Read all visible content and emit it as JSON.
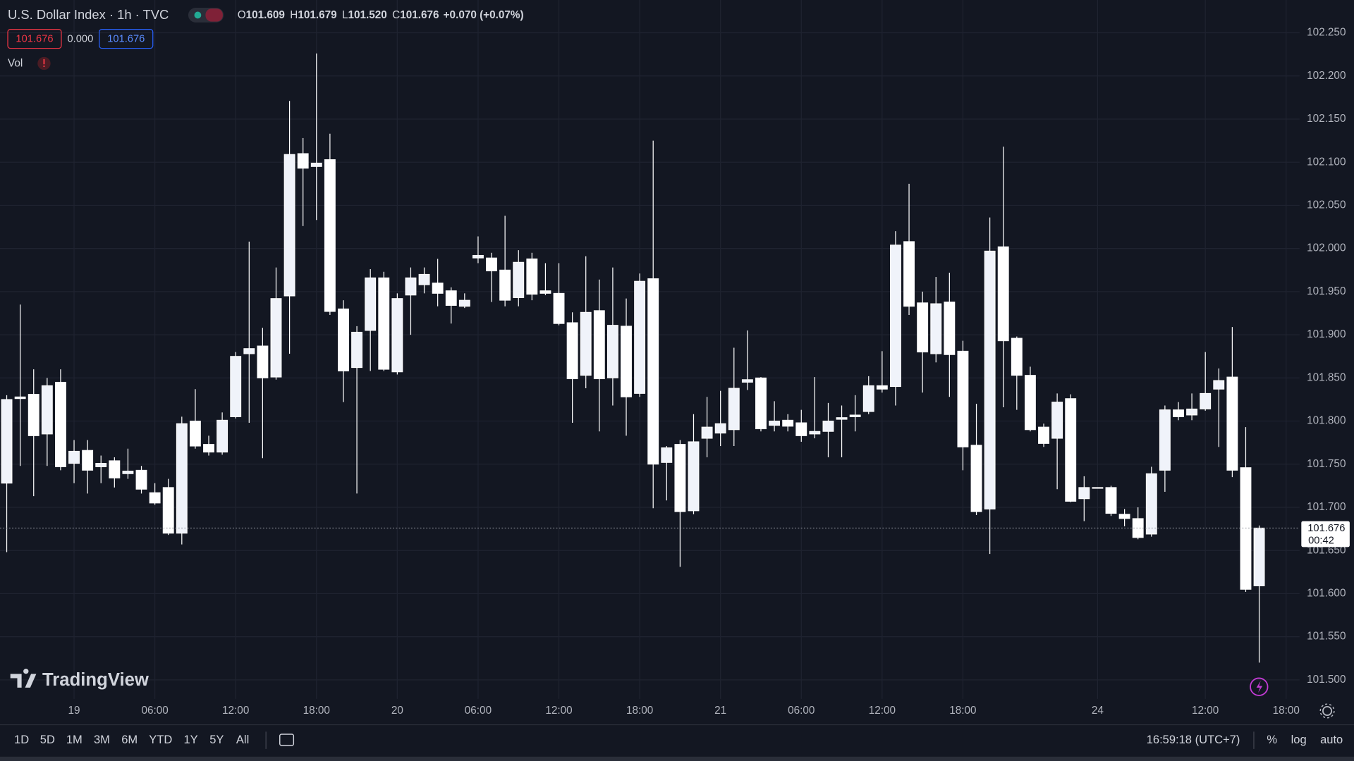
{
  "header": {
    "symbol": "U.S. Dollar Index · 1h · TVC",
    "ohlc": [
      {
        "key": "O",
        "value": "101.609"
      },
      {
        "key": "H",
        "value": "101.679"
      },
      {
        "key": "L",
        "value": "101.520"
      },
      {
        "key": "C",
        "value": "101.676"
      }
    ],
    "change": "+0.070 (+0.07%)",
    "indicators": [
      "101.676",
      "0.000",
      "101.676"
    ],
    "volume": "Vol"
  },
  "logo": "TradingView",
  "toolbar": {
    "ranges": [
      "1D",
      "5D",
      "1M",
      "3M",
      "6M",
      "YTD",
      "1Y",
      "5Y",
      "All"
    ],
    "clock": "16:59:18 (UTC+7)",
    "options": [
      "%",
      "log",
      "auto"
    ]
  },
  "chart_data": {
    "type": "candlestick",
    "color": "#ffffff",
    "open": [
      101.728,
      101.826,
      101.831,
      101.785,
      101.845,
      101.751,
      101.766,
      101.747,
      101.754,
      101.739,
      101.743,
      101.717,
      101.723,
      101.67,
      101.8,
      101.773,
      101.764,
      101.805,
      101.878,
      101.887,
      101.851,
      101.945,
      102.11,
      102.095,
      102.103,
      101.93,
      101.862,
      101.905,
      101.966,
      101.857,
      101.946,
      101.958,
      101.96,
      101.951,
      101.933,
      101.989,
      101.989,
      101.975,
      101.943,
      101.988,
      101.951,
      101.948,
      101.914,
      101.853,
      101.928,
      101.85,
      101.91,
      101.832,
      101.965,
      101.752,
      101.773,
      101.696,
      101.78,
      101.786,
      101.79,
      101.845,
      101.85,
      101.795,
      101.801,
      101.798,
      101.785,
      101.788,
      101.802,
      101.805,
      101.811,
      101.841,
      101.84,
      102.008,
      101.937,
      101.878,
      101.938,
      101.881,
      101.772,
      101.698,
      102.002,
      101.896,
      101.853,
      101.793,
      101.78,
      101.826,
      101.71,
      101.723,
      101.723,
      101.692,
      101.687,
      101.669,
      101.743,
      101.813,
      101.807,
      101.814,
      101.837,
      101.851,
      101.746,
      101.609
    ],
    "high": [
      101.83,
      101.935,
      101.86,
      101.85,
      101.86,
      101.778,
      101.778,
      101.76,
      101.758,
      101.768,
      101.748,
      101.728,
      101.733,
      101.805,
      101.837,
      101.783,
      101.81,
      101.88,
      102.008,
      101.908,
      101.978,
      102.171,
      102.128,
      102.226,
      102.133,
      101.94,
      101.91,
      101.976,
      101.973,
      101.948,
      101.978,
      101.978,
      101.988,
      101.955,
      101.948,
      102.014,
      101.995,
      102.038,
      101.998,
      101.995,
      101.983,
      101.983,
      101.926,
      101.991,
      101.964,
      101.978,
      101.942,
      101.971,
      102.125,
      101.771,
      101.778,
      101.808,
      101.828,
      101.835,
      101.885,
      101.905,
      101.851,
      101.823,
      101.808,
      101.813,
      101.851,
      101.821,
      101.818,
      101.83,
      101.852,
      101.881,
      102.02,
      102.075,
      101.95,
      101.967,
      101.972,
      101.893,
      101.82,
      102.036,
      102.118,
      101.898,
      101.863,
      101.797,
      101.832,
      101.831,
      101.736,
      101.723,
      101.725,
      101.698,
      101.7,
      101.747,
      101.818,
      101.822,
      101.832,
      101.88,
      101.861,
      101.909,
      101.793,
      101.679
    ],
    "low": [
      101.648,
      101.748,
      101.713,
      101.748,
      101.743,
      101.728,
      101.716,
      101.728,
      101.723,
      101.733,
      101.716,
      101.703,
      101.668,
      101.657,
      101.768,
      101.76,
      101.761,
      101.803,
      101.798,
      101.757,
      101.848,
      101.878,
      102.026,
      102.033,
      101.923,
      101.822,
      101.716,
      101.858,
      101.858,
      101.854,
      101.9,
      101.948,
      101.933,
      101.913,
      101.931,
      101.983,
      101.938,
      101.933,
      101.933,
      101.94,
      101.946,
      101.911,
      101.798,
      101.838,
      101.788,
      101.818,
      101.783,
      101.828,
      101.699,
      101.708,
      101.631,
      101.692,
      101.758,
      101.771,
      101.771,
      101.836,
      101.788,
      101.788,
      101.788,
      101.776,
      101.78,
      101.758,
      101.758,
      101.788,
      101.808,
      101.833,
      101.818,
      101.923,
      101.833,
      101.868,
      101.828,
      101.743,
      101.691,
      101.646,
      101.816,
      101.813,
      101.788,
      101.77,
      101.721,
      101.706,
      101.684,
      101.722,
      101.69,
      101.678,
      101.663,
      101.666,
      101.718,
      101.801,
      101.801,
      101.812,
      101.77,
      101.735,
      101.602,
      101.52
    ],
    "close": [
      101.825,
      101.828,
      101.783,
      101.841,
      101.747,
      101.765,
      101.743,
      101.751,
      101.734,
      101.742,
      101.721,
      101.705,
      101.67,
      101.797,
      101.771,
      101.764,
      101.801,
      101.875,
      101.884,
      101.85,
      101.942,
      102.109,
      102.093,
      102.099,
      101.927,
      101.858,
      101.903,
      101.966,
      101.86,
      101.942,
      101.966,
      101.97,
      101.948,
      101.934,
      101.94,
      101.992,
      101.974,
      101.94,
      101.984,
      101.947,
      101.948,
      101.913,
      101.849,
      101.926,
      101.849,
      101.911,
      101.828,
      101.962,
      101.75,
      101.769,
      101.695,
      101.776,
      101.793,
      101.797,
      101.838,
      101.848,
      101.791,
      101.8,
      101.794,
      101.783,
      101.788,
      101.8,
      101.804,
      101.807,
      101.841,
      101.837,
      102.004,
      101.933,
      101.88,
      101.936,
      101.877,
      101.77,
      101.695,
      101.997,
      101.893,
      101.853,
      101.79,
      101.774,
      101.822,
      101.707,
      101.723,
      101.722,
      101.693,
      101.687,
      101.665,
      101.739,
      101.813,
      101.805,
      101.814,
      101.832,
      101.847,
      101.743,
      101.605,
      101.676
    ],
    "xlim": [
      -0.5,
      96
    ],
    "xticks": [
      {
        "value": 5,
        "label": "19"
      },
      {
        "value": 11,
        "label": "06:00"
      },
      {
        "value": 17,
        "label": "12:00"
      },
      {
        "value": 23,
        "label": "18:00"
      },
      {
        "value": 29,
        "label": "20"
      },
      {
        "value": 35,
        "label": "06:00"
      },
      {
        "value": 41,
        "label": "12:00"
      },
      {
        "value": 47,
        "label": "18:00"
      },
      {
        "value": 53,
        "label": "21"
      },
      {
        "value": 59,
        "label": "06:00"
      },
      {
        "value": 65,
        "label": "12:00"
      },
      {
        "value": 71,
        "label": "18:00"
      },
      {
        "value": 81,
        "label": "24"
      },
      {
        "value": 89,
        "label": "12:00"
      },
      {
        "value": 95,
        "label": "18:00"
      }
    ],
    "ylim": [
      101.478,
      102.288
    ],
    "yticks": [
      {
        "value": 101.5,
        "label": "101.500"
      },
      {
        "value": 101.55,
        "label": "101.550"
      },
      {
        "value": 101.6,
        "label": "101.600"
      },
      {
        "value": 101.65,
        "label": "101.650"
      },
      {
        "value": 101.7,
        "label": "101.700"
      },
      {
        "value": 101.75,
        "label": "101.750"
      },
      {
        "value": 101.8,
        "label": "101.800"
      },
      {
        "value": 101.85,
        "label": "101.850"
      },
      {
        "value": 101.9,
        "label": "101.900"
      },
      {
        "value": 101.95,
        "label": "101.950"
      },
      {
        "value": 102,
        "label": "102.000"
      },
      {
        "value": 102.05,
        "label": "102.050"
      },
      {
        "value": 102.1,
        "label": "102.100"
      },
      {
        "value": 102.15,
        "label": "102.150"
      },
      {
        "value": 102.2,
        "label": "102.200"
      },
      {
        "value": 102.25,
        "label": "102.250"
      }
    ],
    "grid": true,
    "last_price": {
      "value": 101.676,
      "label": "101.676"
    },
    "countdown": "00:42"
  }
}
